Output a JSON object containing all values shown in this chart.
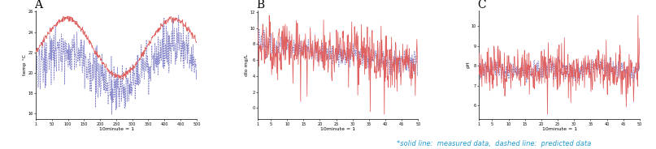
{
  "title_A": "A",
  "title_B": "B",
  "title_C": "C",
  "ylabel_A": "temp °C",
  "ylabel_B": "dlo mg/L",
  "ylabel_C": "pH",
  "xlabel": "10minute = 1",
  "footnote": "*solid line:  measured data,  dashed line:  predicted data",
  "footnote_color": "#2299cc",
  "line_measured_color": "#e06060",
  "line_predicted_color": "#8888cc",
  "figsize": [
    8.07,
    1.84
  ],
  "dpi": 100,
  "font_size_label": 4.5,
  "font_size_tick": 3.5,
  "font_size_title": 10,
  "font_size_footnote": 6
}
